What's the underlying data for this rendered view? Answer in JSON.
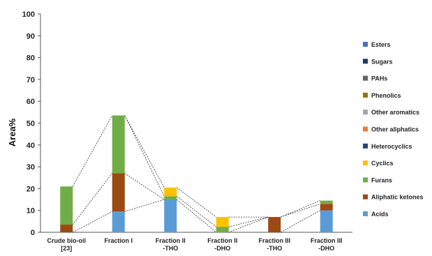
{
  "chart_data": {
    "type": "bar",
    "stacked": true,
    "ylabel": "Area%",
    "ylim": [
      0,
      100
    ],
    "yticks": [
      "0",
      "10",
      "20",
      "30",
      "40",
      "50",
      "60",
      "70",
      "80",
      "90",
      "100"
    ],
    "categories": [
      [
        "Crude bio-oil",
        "[23]"
      ],
      [
        "Fraction I"
      ],
      [
        "Fraction II",
        "-THO"
      ],
      [
        "Fraction II",
        "-DHO"
      ],
      [
        "Fraction III",
        "-THO"
      ],
      [
        "Fraction III",
        "-DHO"
      ]
    ],
    "legend_position": "right",
    "dashed_connectors": true,
    "series": [
      {
        "name": "Acids",
        "color": "#5b9bd5",
        "values": [
          0,
          9.5,
          15,
          0,
          0,
          10
        ]
      },
      {
        "name": "Aliphatic ketones",
        "color": "#9c4a14",
        "values": [
          3.5,
          17.5,
          0,
          0,
          7,
          3
        ]
      },
      {
        "name": "Furans",
        "color": "#70ad47",
        "values": [
          17.5,
          26.5,
          1.5,
          2.5,
          0,
          1.5
        ]
      },
      {
        "name": "Cyclics",
        "color": "#ffc000",
        "values": [
          0,
          0,
          4,
          4.5,
          0,
          0
        ]
      },
      {
        "name": "Heterocyclics",
        "color": "#264478",
        "values": [
          0,
          0,
          0,
          0,
          0,
          0
        ]
      },
      {
        "name": "Other aliphatics",
        "color": "#ed7d31",
        "values": [
          0,
          0,
          0,
          0,
          0,
          0
        ]
      },
      {
        "name": "Other aromatics",
        "color": "#a5a5a5",
        "values": [
          0,
          0,
          0,
          0,
          0,
          0
        ]
      },
      {
        "name": "Phenolics",
        "color": "#997300",
        "values": [
          0,
          0,
          0,
          0,
          0,
          0
        ]
      },
      {
        "name": "PAHs",
        "color": "#636363",
        "values": [
          0,
          0,
          0,
          0,
          0,
          0
        ]
      },
      {
        "name": "Sugars",
        "color": "#203864",
        "values": [
          0,
          0,
          0,
          0,
          0,
          0
        ]
      },
      {
        "name": "Esters",
        "color": "#4472c4",
        "values": [
          0,
          0,
          0,
          0,
          0,
          0
        ]
      }
    ]
  }
}
